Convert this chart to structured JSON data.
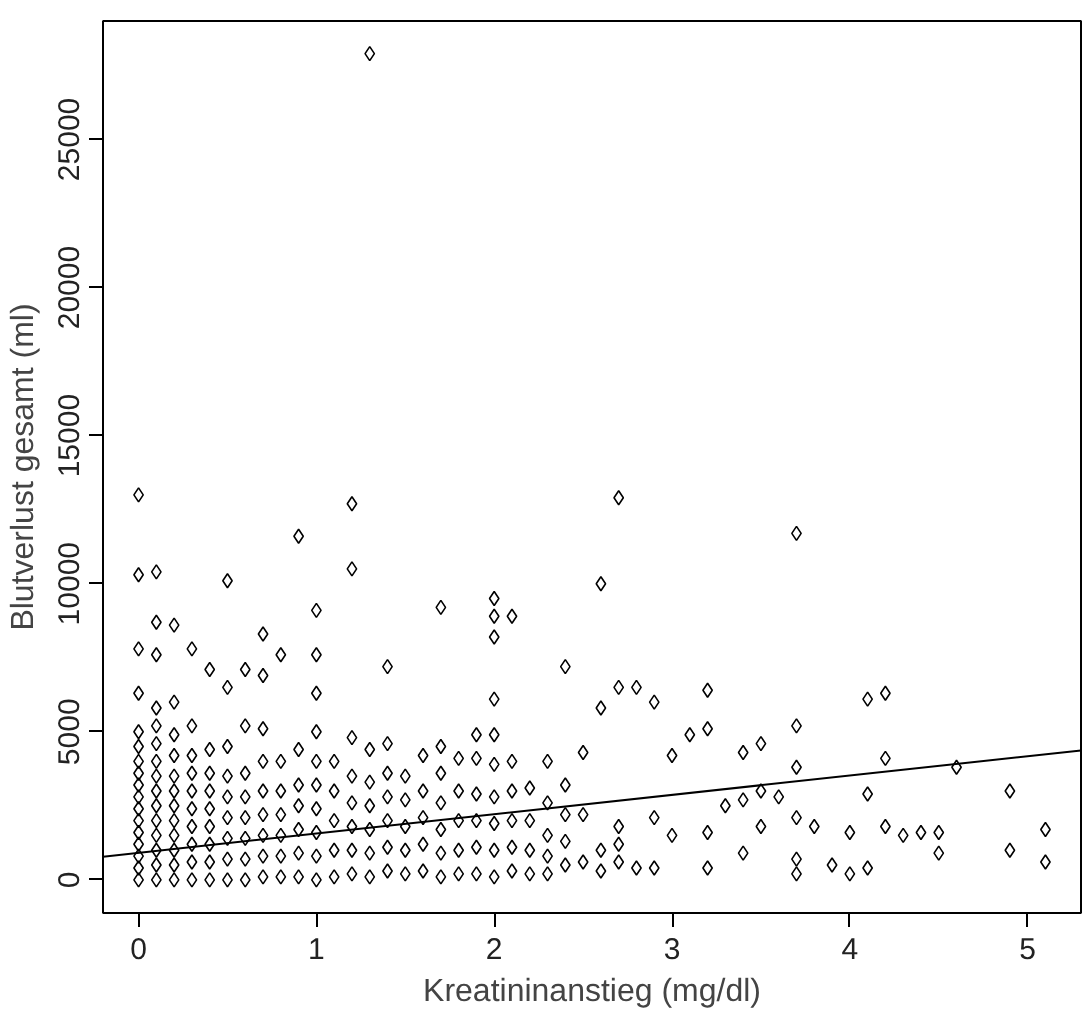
{
  "chart_data": {
    "type": "scatter",
    "xlabel": "Kreatininanstieg (mg/dl)",
    "ylabel": "Blutverlust gesamt (ml)",
    "xlim": [
      -0.2,
      5.3
    ],
    "ylim": [
      -1120,
      29000
    ],
    "xticks": [
      0,
      1,
      2,
      3,
      4,
      5
    ],
    "yticks": [
      0,
      5000,
      10000,
      15000,
      20000,
      25000
    ],
    "grid": false,
    "series": [
      {
        "color": "#000000",
        "marker": "diamond",
        "x": [
          0,
          0,
          0,
          0,
          0,
          0,
          0,
          0,
          0,
          0,
          0,
          0,
          0,
          0,
          0,
          0,
          0,
          0.1,
          0.1,
          0.1,
          0.1,
          0.1,
          0.1,
          0.1,
          0.1,
          0.1,
          0.1,
          0.1,
          0.1,
          0.1,
          0.1,
          0.1,
          0.2,
          0.2,
          0.2,
          0.2,
          0.2,
          0.2,
          0.2,
          0.2,
          0.2,
          0.2,
          0.2,
          0.2,
          0.3,
          0.3,
          0.3,
          0.3,
          0.3,
          0.3,
          0.3,
          0.3,
          0.3,
          0.3,
          0.4,
          0.4,
          0.4,
          0.4,
          0.4,
          0.4,
          0.4,
          0.4,
          0.4,
          0.5,
          0.5,
          0.5,
          0.5,
          0.5,
          0.5,
          0.5,
          0.5,
          0.5,
          0.6,
          0.6,
          0.6,
          0.6,
          0.6,
          0.6,
          0.6,
          0.6,
          0.7,
          0.7,
          0.7,
          0.7,
          0.7,
          0.7,
          0.7,
          0.7,
          0.7,
          0.8,
          0.8,
          0.8,
          0.8,
          0.8,
          0.8,
          0.8,
          0.9,
          0.9,
          0.9,
          0.9,
          0.9,
          0.9,
          0.9,
          1.0,
          1.0,
          1.0,
          1.0,
          1.0,
          1.0,
          1.0,
          1.0,
          1.0,
          1.0,
          1.1,
          1.1,
          1.1,
          1.1,
          1.1,
          1.2,
          1.2,
          1.2,
          1.2,
          1.2,
          1.2,
          1.2,
          1.2,
          1.3,
          1.3,
          1.3,
          1.3,
          1.3,
          1.3,
          1.3,
          1.4,
          1.4,
          1.4,
          1.4,
          1.4,
          1.4,
          1.4,
          1.5,
          1.5,
          1.5,
          1.5,
          1.5,
          1.6,
          1.6,
          1.6,
          1.6,
          1.6,
          1.7,
          1.7,
          1.7,
          1.7,
          1.7,
          1.7,
          1.7,
          1.8,
          1.8,
          1.8,
          1.8,
          1.8,
          1.9,
          1.9,
          1.9,
          1.9,
          1.9,
          1.9,
          2.0,
          2.0,
          2.0,
          2.0,
          2.0,
          2.0,
          2.0,
          2.0,
          2.0,
          2.0,
          2.1,
          2.1,
          2.1,
          2.1,
          2.1,
          2.1,
          2.2,
          2.2,
          2.2,
          2.2,
          2.3,
          2.3,
          2.3,
          2.3,
          2.3,
          2.4,
          2.4,
          2.4,
          2.4,
          2.4,
          2.5,
          2.5,
          2.5,
          2.6,
          2.6,
          2.6,
          2.6,
          2.7,
          2.7,
          2.7,
          2.7,
          2.7,
          2.8,
          2.8,
          2.9,
          2.9,
          2.9,
          3.0,
          3.0,
          3.1,
          3.2,
          3.2,
          3.2,
          3.2,
          3.3,
          3.4,
          3.4,
          3.4,
          3.5,
          3.5,
          3.5,
          3.6,
          3.7,
          3.7,
          3.7,
          3.7,
          3.7,
          3.7,
          3.8,
          3.9,
          4.0,
          4.0,
          4.1,
          4.1,
          4.1,
          4.2,
          4.2,
          4.2,
          4.3,
          4.4,
          4.5,
          4.5,
          4.6,
          4.9,
          4.9,
          5.1,
          5.1
        ],
        "values": [
          0,
          400,
          800,
          1200,
          1600,
          2000,
          2400,
          2800,
          3200,
          3600,
          4000,
          4500,
          5000,
          6300,
          7800,
          10300,
          13000,
          0,
          500,
          1000,
          1500,
          2000,
          2500,
          3000,
          3500,
          4000,
          4600,
          5200,
          5800,
          7600,
          8700,
          10400,
          0,
          500,
          1000,
          1500,
          2000,
          2500,
          3000,
          3500,
          4200,
          4900,
          6000,
          8600,
          0,
          600,
          1200,
          1800,
          2400,
          3000,
          3600,
          4200,
          5200,
          7800,
          0,
          600,
          1200,
          1800,
          2400,
          3000,
          3600,
          4400,
          7100,
          0,
          700,
          1400,
          2100,
          2800,
          3500,
          4500,
          6500,
          10100,
          0,
          700,
          1400,
          2100,
          2800,
          3600,
          5200,
          7100,
          100,
          800,
          1500,
          2200,
          3000,
          4000,
          5100,
          6900,
          8300,
          100,
          800,
          1500,
          2200,
          3000,
          4000,
          7600,
          100,
          900,
          1700,
          2500,
          3200,
          4400,
          11600,
          0,
          800,
          1600,
          2400,
          3200,
          4000,
          5000,
          6300,
          7600,
          9100,
          100,
          1000,
          2000,
          3000,
          4000,
          200,
          1000,
          1800,
          2600,
          3500,
          4800,
          10500,
          12700,
          100,
          900,
          1700,
          2500,
          3300,
          4400,
          27900,
          300,
          1100,
          2000,
          2800,
          3600,
          4600,
          7200,
          200,
          1000,
          1800,
          2700,
          3500,
          300,
          1200,
          2100,
          3000,
          4200,
          100,
          900,
          1700,
          2600,
          3600,
          4500,
          9200,
          200,
          1000,
          2000,
          3000,
          4100,
          200,
          1100,
          2000,
          2900,
          4100,
          4900,
          100,
          1000,
          1900,
          2800,
          3900,
          4900,
          6100,
          8200,
          8900,
          9500,
          300,
          1100,
          2000,
          3000,
          4000,
          8900,
          200,
          1000,
          2000,
          3100,
          200,
          800,
          1500,
          2600,
          4000,
          500,
          1300,
          2200,
          3200,
          7200,
          600,
          2200,
          4300,
          300,
          5800,
          1000,
          10000,
          600,
          1800,
          6500,
          12900,
          1200,
          400,
          6500,
          400,
          2100,
          6000,
          1500,
          4200,
          4900,
          400,
          1600,
          5100,
          6400,
          2500,
          900,
          2700,
          4300,
          1800,
          3000,
          4600,
          2800,
          200,
          700,
          2100,
          3800,
          5200,
          11700,
          1800,
          500,
          200,
          1600,
          400,
          2900,
          6100,
          1800,
          4100,
          6300,
          1500,
          1600,
          900,
          1600,
          3800,
          1000,
          3000,
          600,
          1700
        ]
      },
      {
        "type": "line",
        "marker": "none",
        "color": "#000000",
        "x": [
          -0.2,
          5.3
        ],
        "values": [
          780,
          4370
        ]
      }
    ]
  }
}
